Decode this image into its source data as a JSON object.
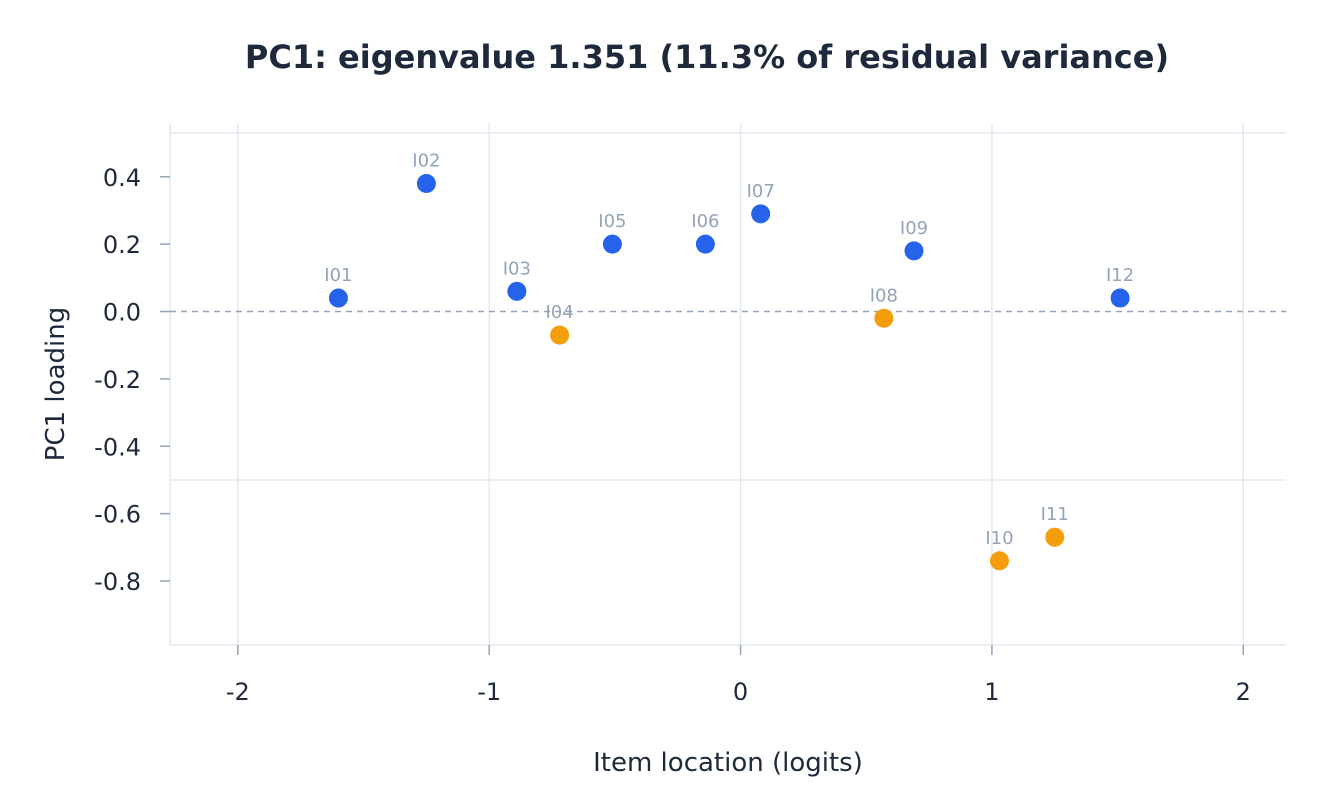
{
  "chart_data": {
    "type": "scatter",
    "title": "PC1: eigenvalue 1.351  (11.3% of residual variance)",
    "xlabel": "Item location (logits)",
    "ylabel": "PC1 loading",
    "xlim": [
      -2.27,
      2.17
    ],
    "ylim": [
      -0.99,
      0.53
    ],
    "xticks": [
      -2,
      -1,
      0,
      1,
      2
    ],
    "xtick_labels": [
      "-2",
      "-1",
      "0",
      "1",
      "2"
    ],
    "yticks": [
      0.4,
      0.2,
      0.0,
      -0.2,
      -0.4,
      -0.6,
      -0.8
    ],
    "ytick_labels": [
      "0.4",
      "0.2",
      "0.0",
      "-0.2",
      "-0.4",
      "-0.6",
      "-0.8"
    ],
    "reference_lines": {
      "y_zero_dashed": 0.0,
      "y_solid": -0.5
    },
    "grid": true,
    "colors": {
      "positive": "#2563eb",
      "negative": "#f59e0b"
    },
    "points": [
      {
        "label": "I01",
        "x": -1.6,
        "y": 0.04
      },
      {
        "label": "I02",
        "x": -1.25,
        "y": 0.38
      },
      {
        "label": "I03",
        "x": -0.89,
        "y": 0.06
      },
      {
        "label": "I04",
        "x": -0.72,
        "y": -0.07
      },
      {
        "label": "I05",
        "x": -0.51,
        "y": 0.2
      },
      {
        "label": "I06",
        "x": -0.14,
        "y": 0.2
      },
      {
        "label": "I07",
        "x": 0.08,
        "y": 0.29
      },
      {
        "label": "I08",
        "x": 0.57,
        "y": -0.02
      },
      {
        "label": "I09",
        "x": 0.69,
        "y": 0.18
      },
      {
        "label": "I10",
        "x": 1.03,
        "y": -0.74
      },
      {
        "label": "I11",
        "x": 1.25,
        "y": -0.67
      },
      {
        "label": "I12",
        "x": 1.51,
        "y": 0.04
      }
    ]
  }
}
